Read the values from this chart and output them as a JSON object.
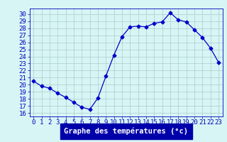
{
  "hours": [
    0,
    1,
    2,
    3,
    4,
    5,
    6,
    7,
    8,
    9,
    10,
    11,
    12,
    13,
    14,
    15,
    16,
    17,
    18,
    19,
    20,
    21,
    22,
    23
  ],
  "temperatures": [
    20.5,
    19.8,
    19.5,
    18.8,
    18.2,
    17.5,
    16.8,
    16.5,
    18.1,
    21.2,
    24.2,
    26.8,
    28.2,
    28.3,
    28.2,
    28.7,
    28.9,
    30.2,
    29.2,
    28.9,
    27.8,
    26.7,
    25.2,
    23.2
  ],
  "line_color": "#0000cc",
  "marker": "D",
  "marker_size": 2.5,
  "bg_color": "#d8f5f5",
  "grid_color": "#aacccc",
  "xlabel": "Graphe des températures (°c)",
  "xlabel_color": "#ffffff",
  "xlabel_bg": "#0000aa",
  "ylabel_ticks": [
    16,
    17,
    18,
    19,
    20,
    21,
    22,
    23,
    24,
    25,
    26,
    27,
    28,
    29,
    30
  ],
  "xlim": [
    -0.5,
    23.5
  ],
  "ylim": [
    15.5,
    30.8
  ],
  "tick_fontsize": 6.5,
  "label_fontsize": 7.5
}
